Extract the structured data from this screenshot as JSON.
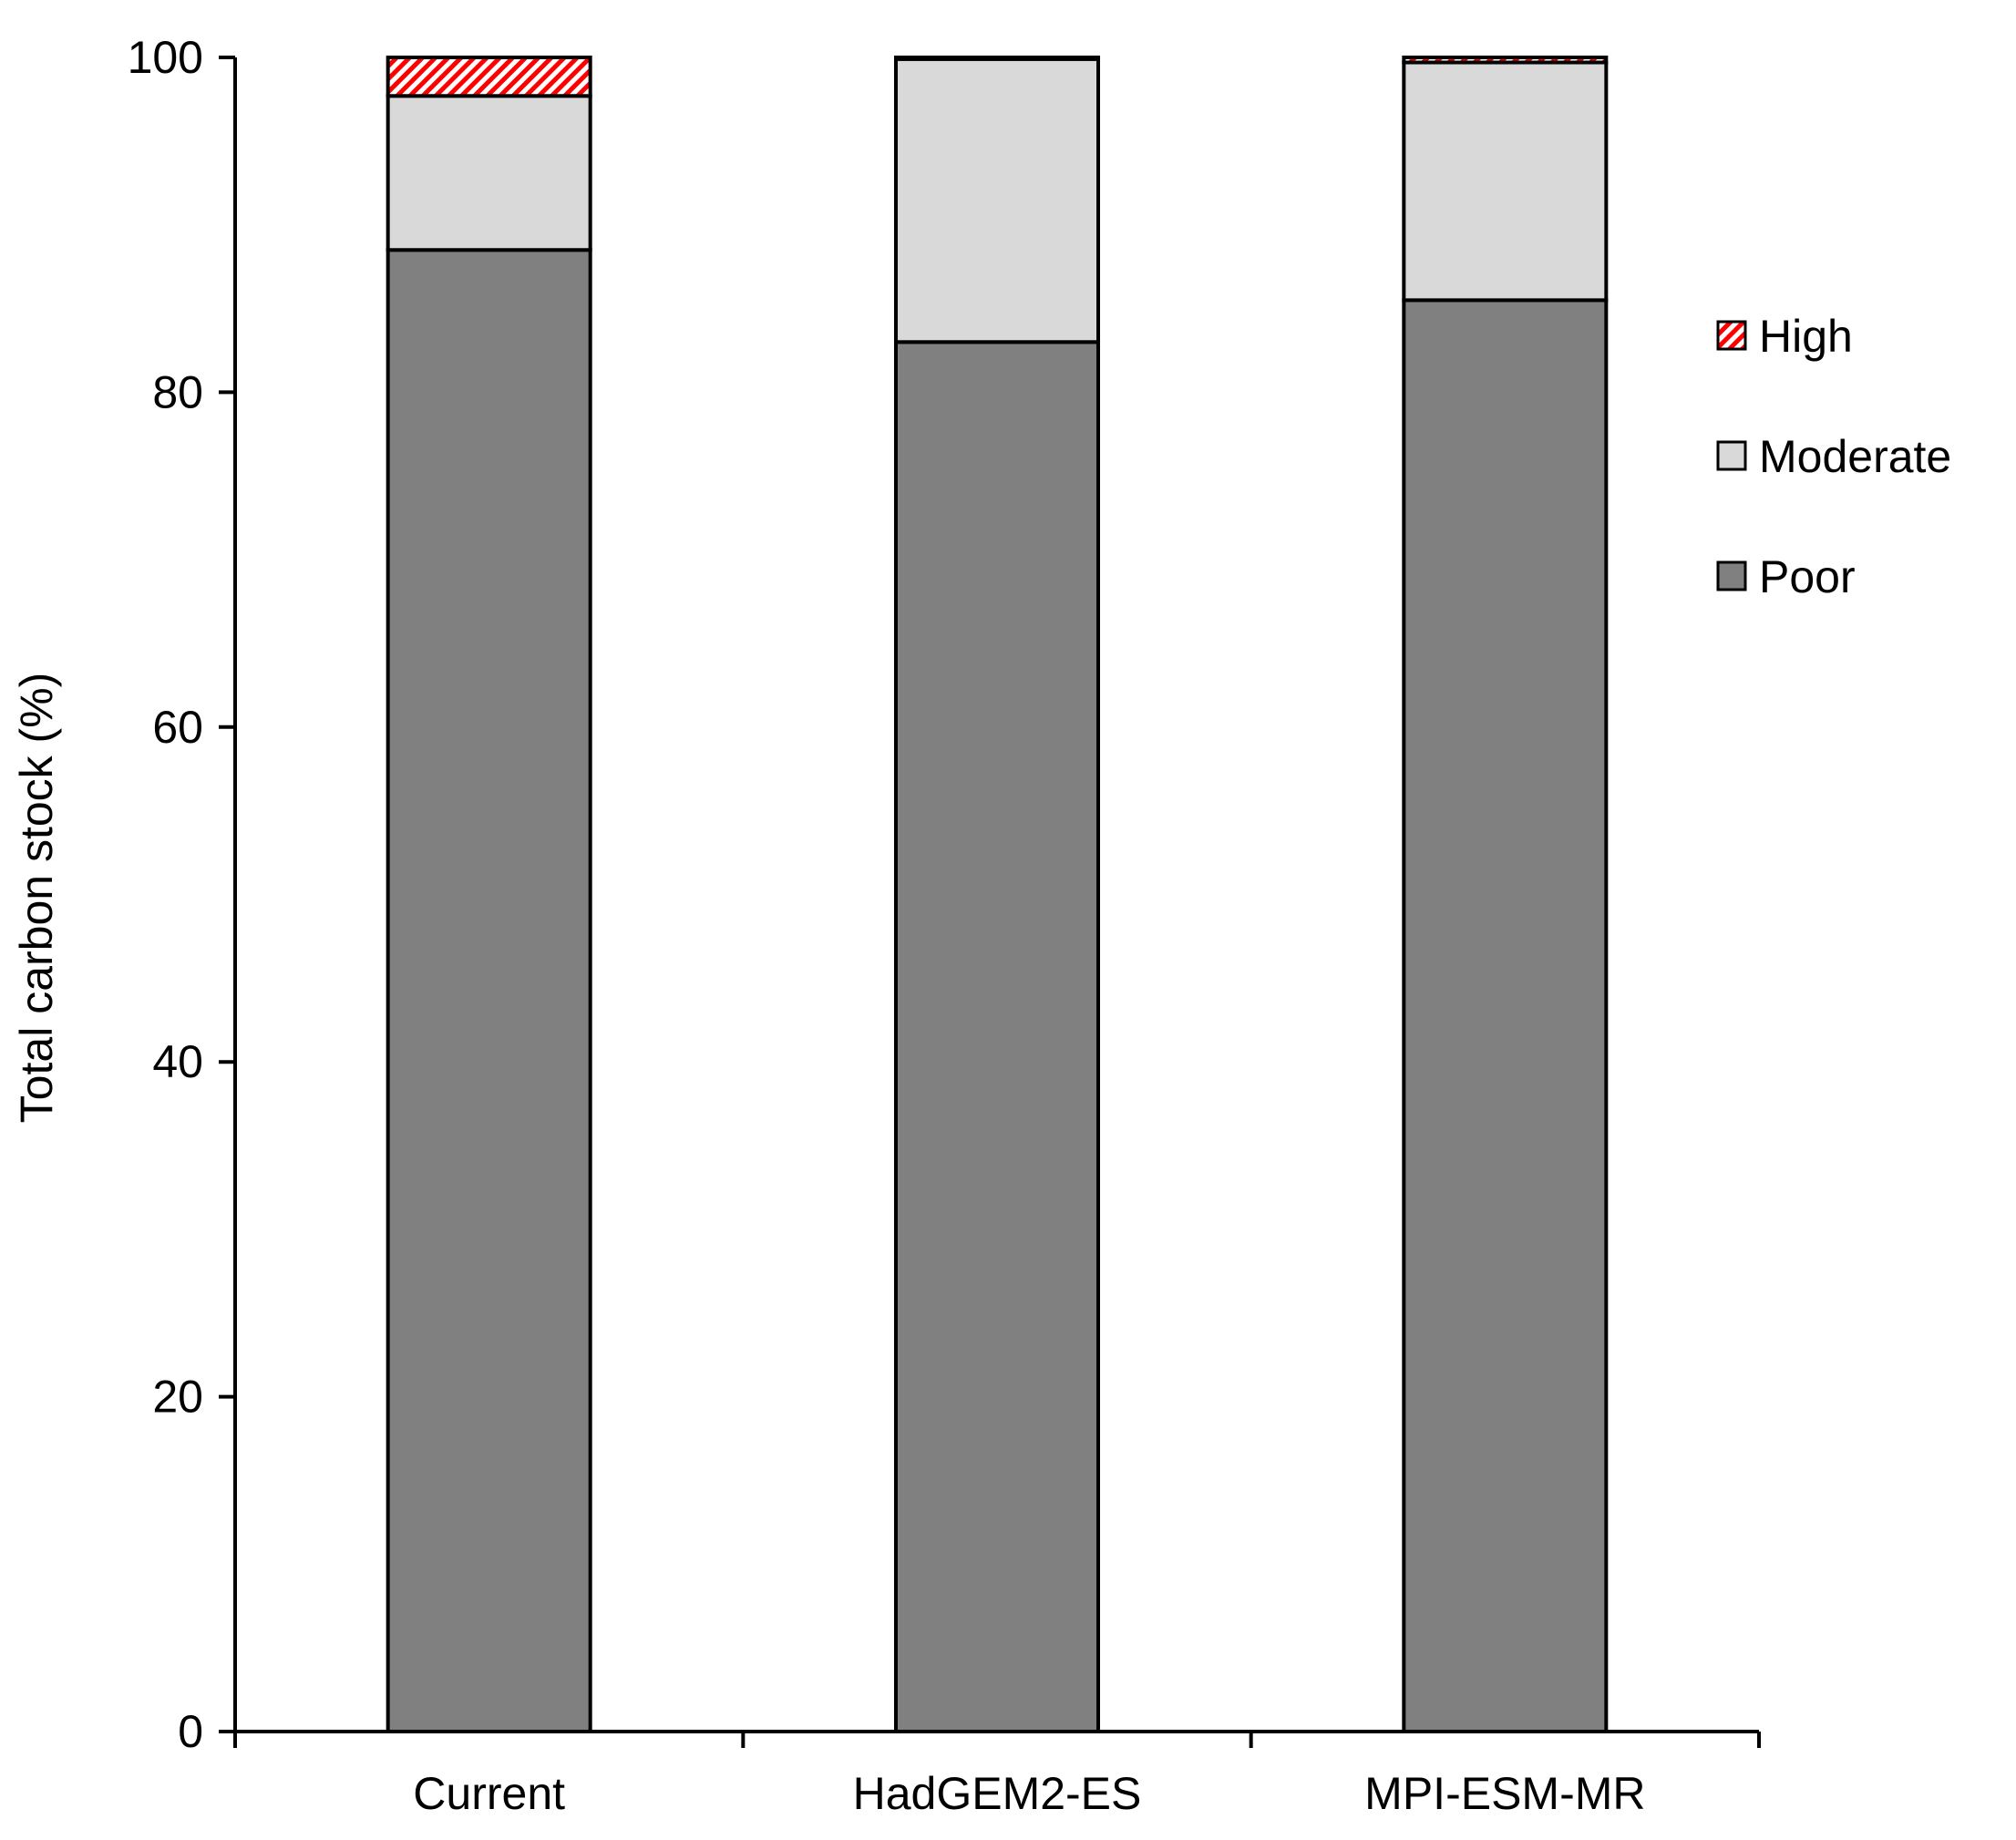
{
  "chart_data": {
    "type": "bar",
    "stacked": true,
    "categories": [
      "Current",
      "HadGEM2-ES",
      "MPI-ESM-MR"
    ],
    "series": [
      {
        "name": "Poor",
        "values": [
          88.5,
          83.0,
          85.5
        ],
        "color": "#808080"
      },
      {
        "name": "Moderate",
        "values": [
          9.2,
          16.9,
          14.2
        ],
        "color": "#d9d9d9"
      },
      {
        "name": "High",
        "values": [
          2.3,
          0.1,
          0.3
        ],
        "color": "#ff0000",
        "pattern": "hatched"
      }
    ],
    "title": "",
    "xlabel": "",
    "ylabel": "Total carbon stock (%)",
    "ylim": [
      0,
      100
    ],
    "yticks": [
      0,
      20,
      40,
      60,
      80,
      100
    ],
    "legend": {
      "position": "right",
      "entries": [
        "High",
        "Moderate",
        "Poor"
      ]
    },
    "grid": false
  }
}
